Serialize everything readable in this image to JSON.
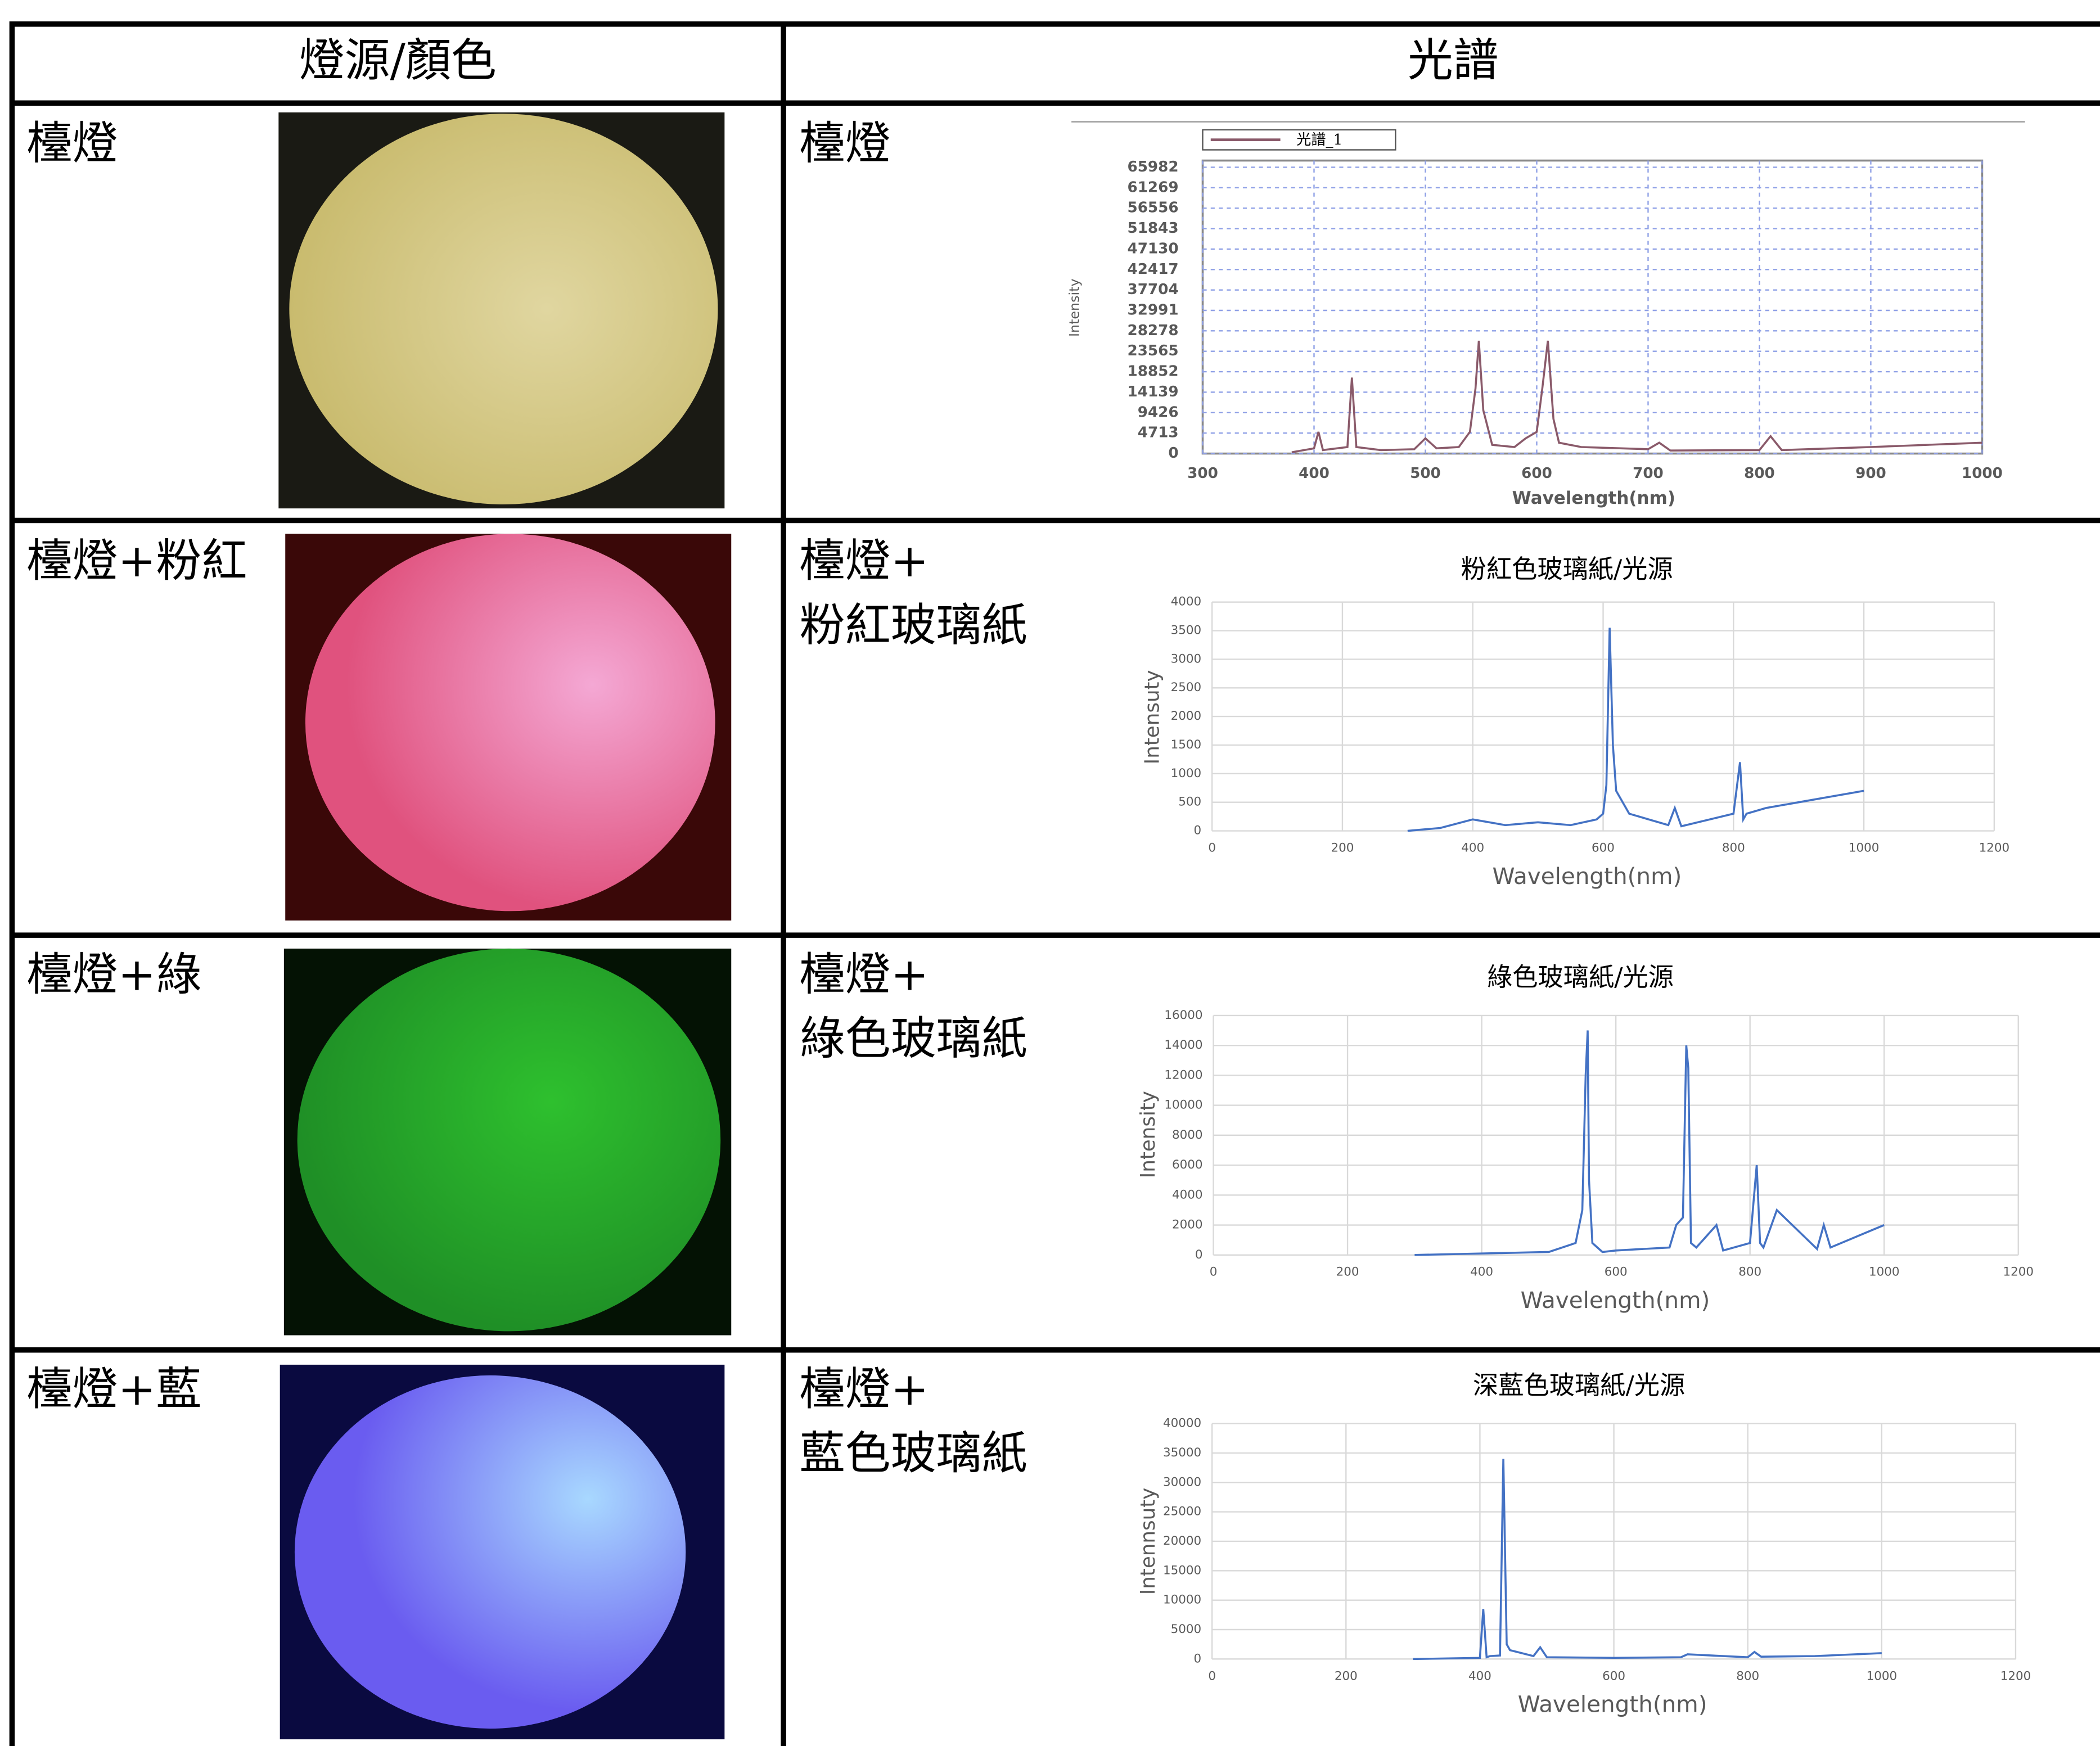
{
  "table": {
    "header": [
      "燈源/顏色",
      "光譜"
    ],
    "rows": [
      {
        "source": "檯燈",
        "spectrum_label": [
          "檯燈"
        ],
        "chart": {
          "type": "line",
          "legend": "光譜_1",
          "ylabel": "Intensity",
          "xlabel": "Wavelength(nm)",
          "grid": true,
          "xlim": [
            300,
            1000
          ],
          "xticks": [
            300,
            400,
            500,
            600,
            700,
            800,
            900,
            1000
          ],
          "ylim": [
            0,
            65982
          ],
          "yticks": [
            0,
            4713,
            9426,
            14139,
            18852,
            23565,
            28278,
            32991,
            37704,
            42417,
            47130,
            51843,
            56556,
            61269,
            65982
          ],
          "color": "#8a5a6a",
          "x": [
            380,
            400,
            404,
            408,
            430,
            434,
            438,
            460,
            490,
            500,
            510,
            530,
            540,
            545,
            548,
            552,
            560,
            580,
            590,
            600,
            605,
            610,
            615,
            620,
            640,
            700,
            710,
            720,
            800,
            810,
            820,
            900,
            1000
          ],
          "values": [
            300,
            1200,
            5000,
            800,
            1500,
            17500,
            1500,
            800,
            1000,
            3500,
            1200,
            1500,
            5000,
            15000,
            26000,
            10000,
            2000,
            1500,
            3500,
            5000,
            15000,
            26000,
            8000,
            2500,
            1500,
            1000,
            2500,
            700,
            800,
            4000,
            800,
            1500,
            2500
          ]
        }
      },
      {
        "source": "檯燈+粉紅",
        "spectrum_label": [
          "檯燈+",
          "粉紅玻璃紙"
        ],
        "chart": {
          "type": "line",
          "title": "粉紅色玻璃紙/光源",
          "ylabel": "Intensuty",
          "xlabel": "Wavelength(nm)",
          "grid": true,
          "xlim": [
            0,
            1200
          ],
          "xticks": [
            0,
            200,
            400,
            600,
            800,
            1000,
            1200
          ],
          "ylim": [
            0,
            4000
          ],
          "yticks": [
            0,
            500,
            1000,
            1500,
            2000,
            2500,
            3000,
            3500,
            4000
          ],
          "color": "#4472c4",
          "x": [
            300,
            350,
            400,
            450,
            500,
            550,
            590,
            600,
            605,
            610,
            615,
            620,
            640,
            700,
            710,
            720,
            800,
            810,
            815,
            820,
            850,
            900,
            950,
            1000
          ],
          "values": [
            0,
            50,
            200,
            100,
            150,
            100,
            200,
            300,
            800,
            3550,
            1500,
            700,
            300,
            100,
            400,
            80,
            300,
            1200,
            200,
            300,
            400,
            500,
            600,
            700
          ]
        }
      },
      {
        "source": "檯燈+綠",
        "spectrum_label": [
          "檯燈+",
          "綠色玻璃紙"
        ],
        "chart": {
          "type": "line",
          "title": "綠色玻璃紙/光源",
          "ylabel": "Intensity",
          "xlabel": "Wavelength(nm)",
          "grid": true,
          "xlim": [
            0,
            1200
          ],
          "xticks": [
            0,
            200,
            400,
            600,
            800,
            1000,
            1200
          ],
          "ylim": [
            0,
            16000
          ],
          "yticks": [
            0,
            2000,
            4000,
            6000,
            8000,
            10000,
            12000,
            14000,
            16000
          ],
          "color": "#4472c4",
          "x": [
            300,
            400,
            500,
            540,
            550,
            555,
            558,
            560,
            565,
            580,
            600,
            680,
            690,
            700,
            705,
            708,
            712,
            720,
            750,
            760,
            800,
            810,
            815,
            820,
            840,
            900,
            910,
            920,
            1000
          ],
          "values": [
            0,
            100,
            200,
            800,
            3000,
            12000,
            15000,
            5000,
            800,
            200,
            300,
            500,
            2000,
            2500,
            14000,
            12500,
            800,
            500,
            2000,
            300,
            800,
            6000,
            800,
            500,
            3000,
            400,
            2000,
            500,
            2000
          ]
        }
      },
      {
        "source": "檯燈+藍",
        "spectrum_label": [
          "檯燈+",
          "藍色玻璃紙"
        ],
        "chart": {
          "type": "line",
          "title": "深藍色玻璃紙/光源",
          "ylabel": "Intennsuty",
          "xlabel": "Wavelength(nm)",
          "grid": true,
          "xlim": [
            0,
            1200
          ],
          "xticks": [
            0,
            200,
            400,
            600,
            800,
            1000,
            1200
          ],
          "ylim": [
            0,
            40000
          ],
          "yticks": [
            0,
            5000,
            10000,
            15000,
            20000,
            25000,
            30000,
            35000,
            40000
          ],
          "color": "#4472c4",
          "x": [
            300,
            400,
            405,
            410,
            415,
            430,
            435,
            440,
            445,
            480,
            490,
            500,
            600,
            700,
            710,
            800,
            810,
            820,
            900,
            1000
          ],
          "values": [
            0,
            200,
            8500,
            300,
            500,
            600,
            34000,
            2500,
            1500,
            500,
            2000,
            300,
            200,
            300,
            800,
            300,
            1200,
            400,
            500,
            1000
          ]
        }
      }
    ]
  }
}
